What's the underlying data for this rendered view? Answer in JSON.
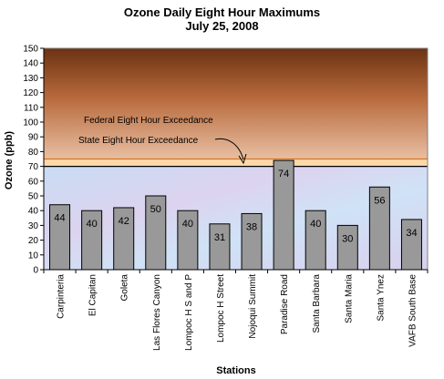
{
  "chart_data": {
    "type": "bar",
    "title": "Ozone Daily Eight Hour Maximums",
    "subtitle": "July 25, 2008",
    "xlabel": "Stations",
    "ylabel": "Ozone (ppb)",
    "ylim": [
      0,
      150
    ],
    "ytick_step": 10,
    "categories": [
      "Carpinteria",
      "El Capitan",
      "Goleta",
      "Las Flores Canyon",
      "Lompoc H S and P",
      "Lompoc H Street",
      "Nojoqui Summit",
      "Paradise Road",
      "Santa Barbara",
      "Santa Maria",
      "Santa Ynez",
      "VAFB South Base"
    ],
    "values": [
      44,
      40,
      42,
      50,
      40,
      31,
      38,
      74,
      40,
      30,
      56,
      34
    ],
    "thresholds": [
      {
        "label": "Federal Eight Hour Exceedance",
        "value": 75
      },
      {
        "label": "State Eight Hour Exceedance",
        "value": 70
      }
    ],
    "legend": "none",
    "grid": false,
    "colors": {
      "bar": "#999999",
      "upper_band_top": "#6b3212",
      "upper_band_bottom": "#e6b89a",
      "threshold_band": "#ffd8a8",
      "lower_band": "#cfe0f5"
    }
  }
}
